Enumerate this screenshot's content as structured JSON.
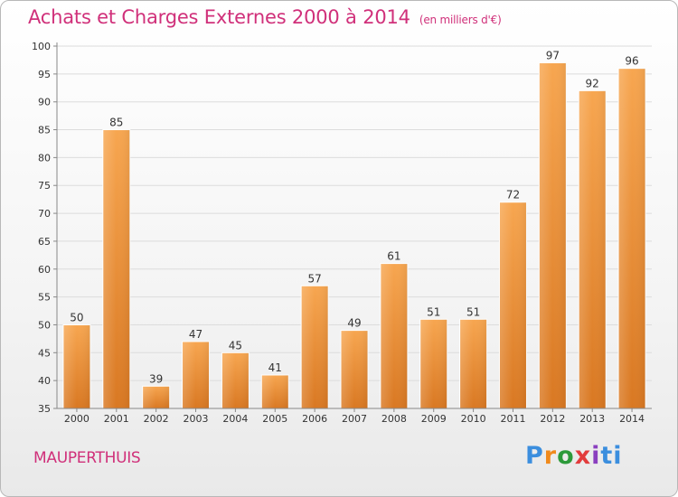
{
  "header": {
    "title": "Achats et Charges Externes 2000 à 2014",
    "subtitle": "(en milliers d'€)"
  },
  "footer": {
    "commune": "MAUPERTHUIS",
    "logo_letters": [
      "P",
      "r",
      "o",
      "x",
      "i",
      "ti"
    ]
  },
  "chart_data": {
    "type": "bar",
    "title": "Achats et Charges Externes 2000 à 2014",
    "subtitle": "(en milliers d'€)",
    "categories": [
      "2000",
      "2001",
      "2002",
      "2003",
      "2004",
      "2005",
      "2006",
      "2007",
      "2008",
      "2009",
      "2010",
      "2011",
      "2012",
      "2013",
      "2014"
    ],
    "values": [
      50,
      85,
      39,
      47,
      45,
      41,
      57,
      49,
      61,
      51,
      51,
      72,
      97,
      92,
      96
    ],
    "xlabel": "",
    "ylabel": "",
    "ylim": [
      35,
      100
    ],
    "yticks": [
      35,
      40,
      45,
      50,
      55,
      60,
      65,
      70,
      75,
      80,
      85,
      90,
      95,
      100
    ],
    "grid": true,
    "bar_color": "#f5a04a",
    "bar_color_dark": "#d87420",
    "legend": "none"
  }
}
